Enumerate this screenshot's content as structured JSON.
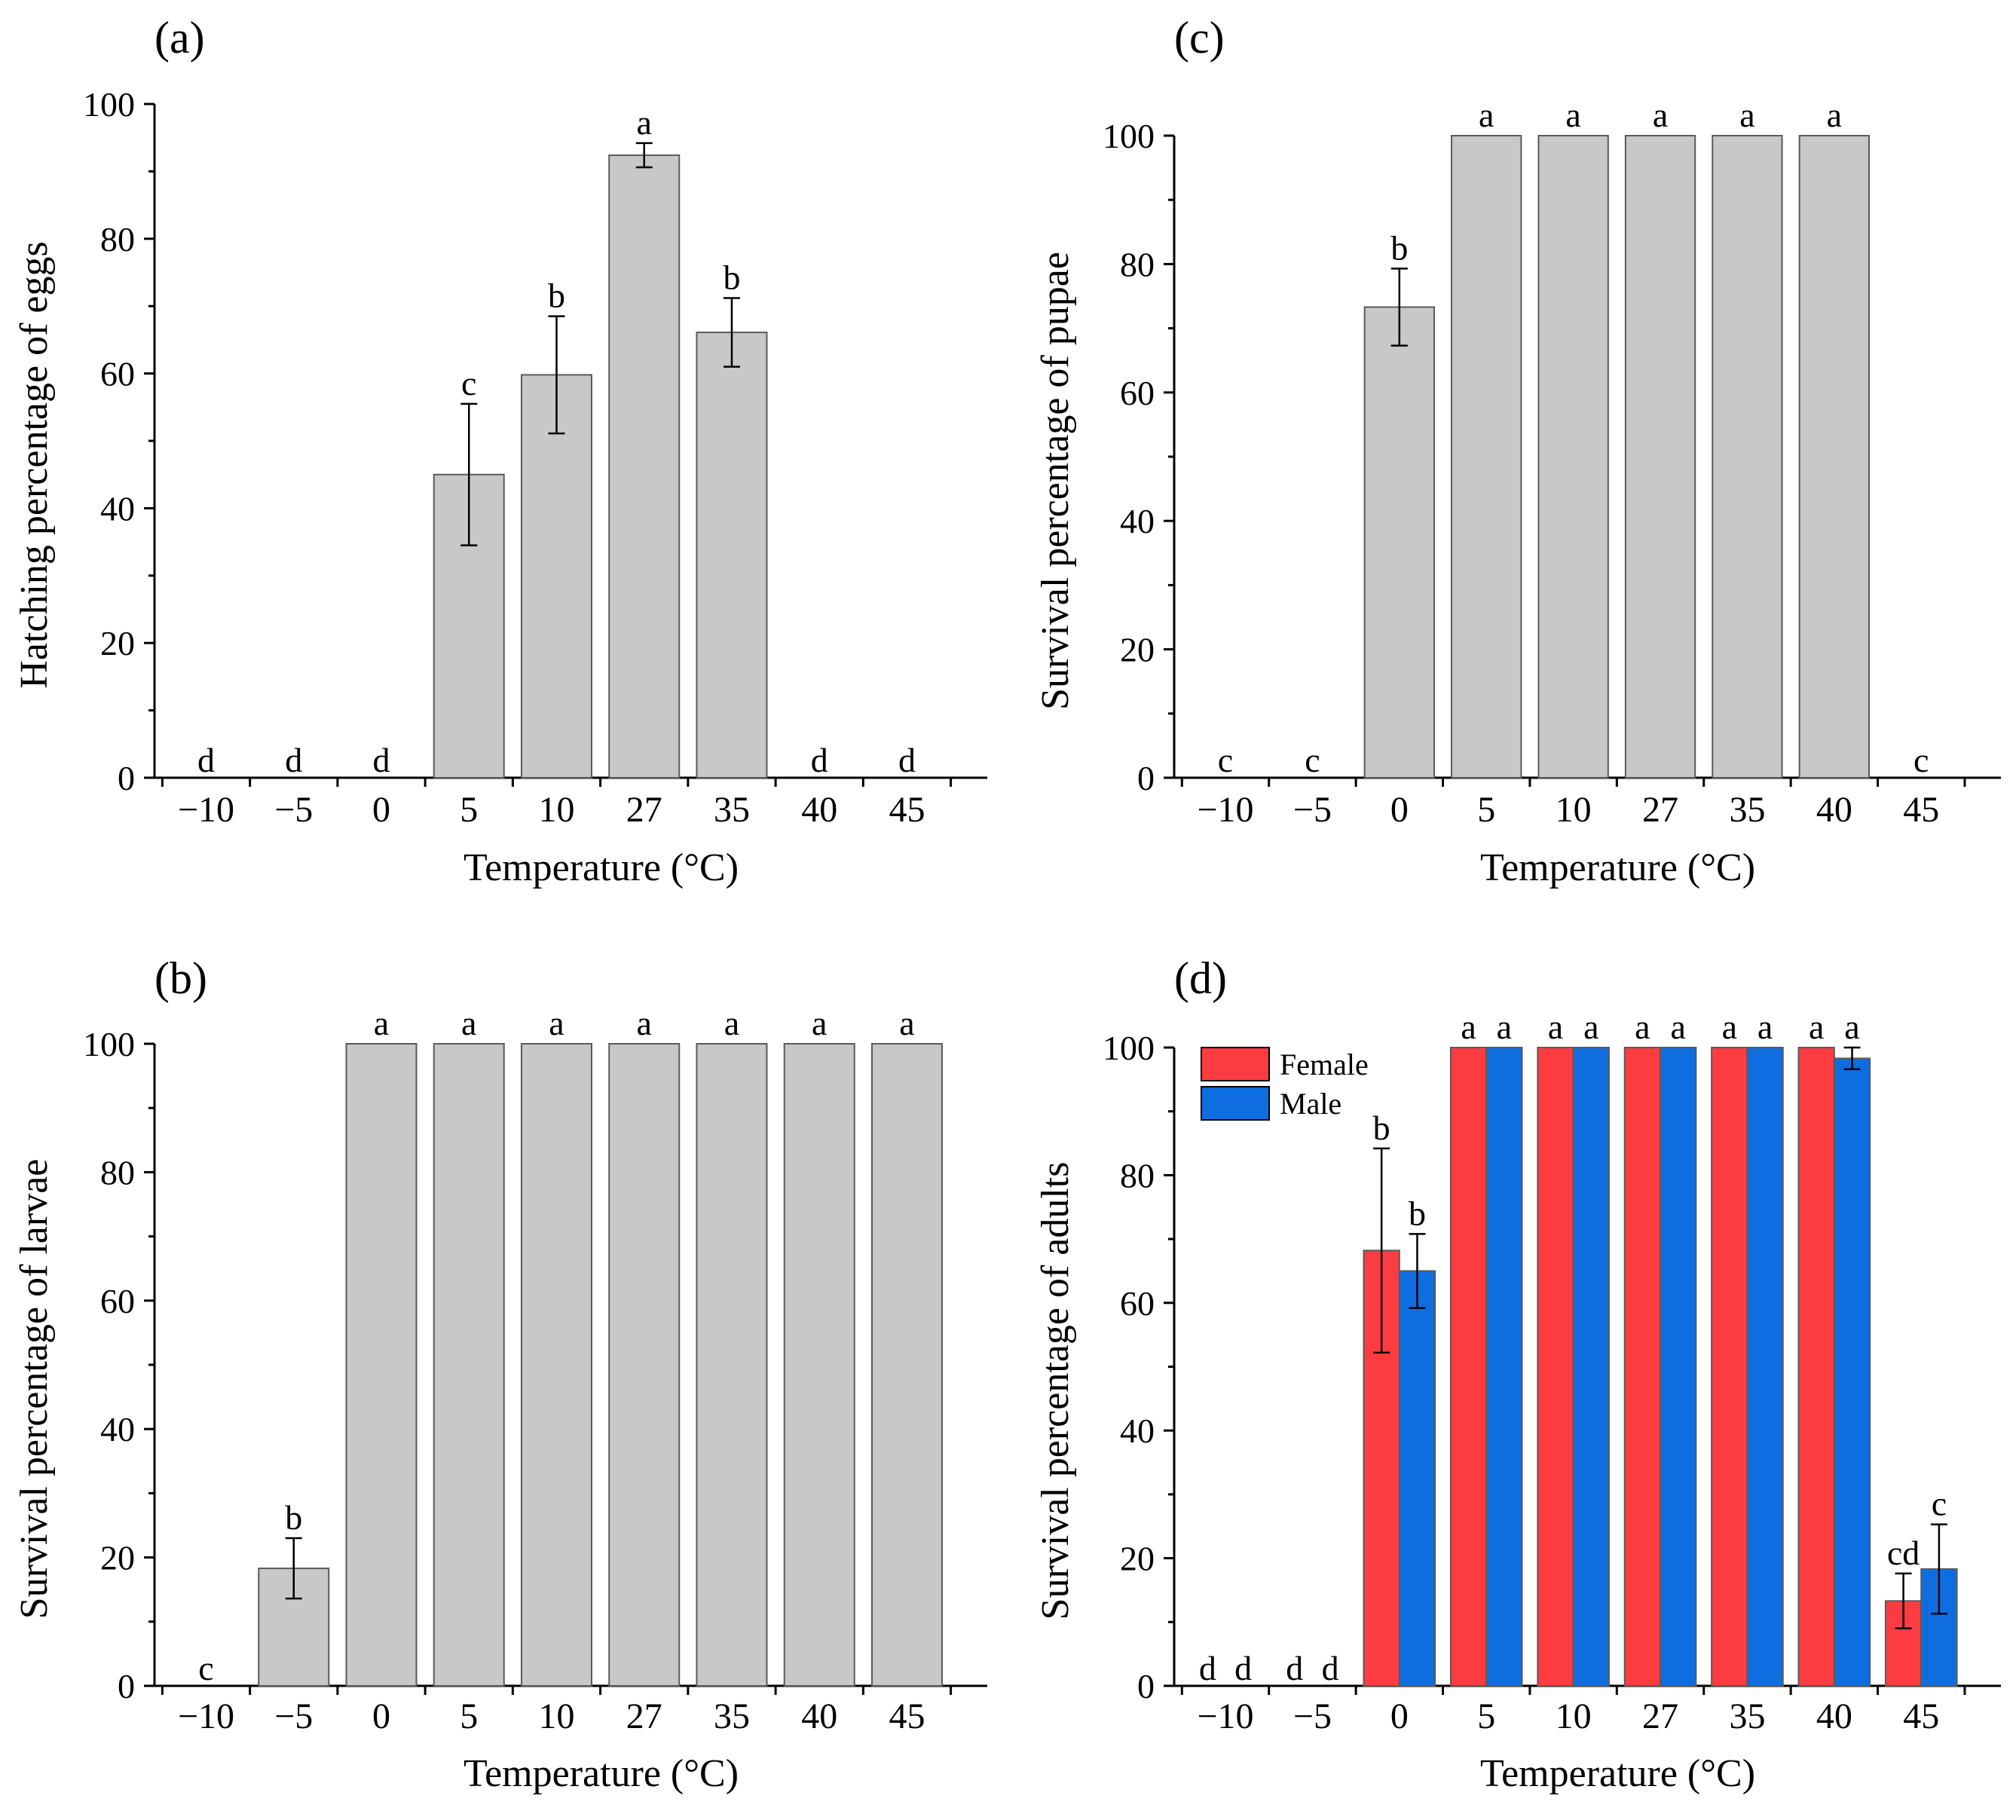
{
  "colors": {
    "gray_bar": "#c8c8c8",
    "female": "#fd3c41",
    "male": "#0e6ee0",
    "bar_stroke": "#5a5a5a",
    "axis": "#000000"
  },
  "chart_data": [
    {
      "panel": "(a)",
      "type": "bar",
      "xlabel": "Temperature (°C)",
      "ylabel": "Hatching percentage of eggs",
      "ylim": [
        0,
        100
      ],
      "yticks": [
        0,
        20,
        40,
        60,
        80,
        100
      ],
      "categories": [
        "−10",
        "−5",
        "0",
        "5",
        "10",
        "27",
        "35",
        "40",
        "45"
      ],
      "series": [
        {
          "values": [
            0,
            0,
            0,
            45,
            59.8,
            92.4,
            66.1,
            0,
            0
          ],
          "errors": [
            0,
            0,
            0,
            10.5,
            8.7,
            1.8,
            5.1,
            0,
            0
          ],
          "letters": [
            "d",
            "d",
            "d",
            "c",
            "b",
            "a",
            "b",
            "d",
            "d"
          ]
        }
      ],
      "grid": false
    },
    {
      "panel": "(b)",
      "type": "bar",
      "xlabel": "Temperature (°C)",
      "ylabel": "Survival percentage of larvae",
      "ylim": [
        0,
        100
      ],
      "yticks": [
        0,
        20,
        40,
        60,
        80,
        100
      ],
      "categories": [
        "−10",
        "−5",
        "0",
        "5",
        "10",
        "27",
        "35",
        "40",
        "45"
      ],
      "series": [
        {
          "values": [
            0,
            18.3,
            100,
            100,
            100,
            100,
            100,
            100,
            100
          ],
          "errors": [
            0,
            4.7,
            0,
            0,
            0,
            0,
            0,
            0,
            0
          ],
          "letters": [
            "c",
            "b",
            "a",
            "a",
            "a",
            "a",
            "a",
            "a",
            "a"
          ]
        }
      ],
      "grid": false
    },
    {
      "panel": "(c)",
      "type": "bar",
      "xlabel": "Temperature (°C)",
      "ylabel": "Survival percentage of pupae",
      "ylim": [
        0,
        100
      ],
      "yticks": [
        0,
        20,
        40,
        60,
        80,
        100
      ],
      "categories": [
        "−10",
        "−5",
        "0",
        "5",
        "10",
        "27",
        "35",
        "40",
        "45"
      ],
      "series": [
        {
          "values": [
            0,
            0,
            73.3,
            100,
            100,
            100,
            100,
            100,
            0
          ],
          "errors": [
            0,
            0,
            6,
            0,
            0,
            0,
            0,
            0,
            0
          ],
          "letters": [
            "c",
            "c",
            "b",
            "a",
            "a",
            "a",
            "a",
            "a",
            "c"
          ]
        }
      ],
      "grid": false
    },
    {
      "panel": "(d)",
      "type": "bar",
      "xlabel": "Temperature (°C)",
      "ylabel": "Survival percentage of adults",
      "ylim": [
        0,
        100
      ],
      "yticks": [
        0,
        20,
        40,
        60,
        80,
        100
      ],
      "categories": [
        "−10",
        "−5",
        "0",
        "5",
        "10",
        "27",
        "35",
        "40",
        "45"
      ],
      "legend_position": "top-left",
      "series": [
        {
          "name": "Female",
          "values": [
            0,
            0,
            68.2,
            100,
            100,
            100,
            100,
            100,
            13.3
          ],
          "errors": [
            0,
            0,
            16,
            0,
            0,
            0,
            0,
            0,
            4.3
          ],
          "letters": [
            "d",
            "d",
            "b",
            "a",
            "a",
            "a",
            "a",
            "a",
            "cd"
          ]
        },
        {
          "name": "Male",
          "values": [
            0,
            0,
            65,
            100,
            100,
            100,
            100,
            98.3,
            18.3
          ],
          "errors": [
            0,
            0,
            5.8,
            0,
            0,
            0,
            0,
            1.7,
            7
          ],
          "letters": [
            "d",
            "d",
            "b",
            "a",
            "a",
            "a",
            "a",
            "a",
            "c"
          ]
        }
      ],
      "grid": false
    }
  ]
}
